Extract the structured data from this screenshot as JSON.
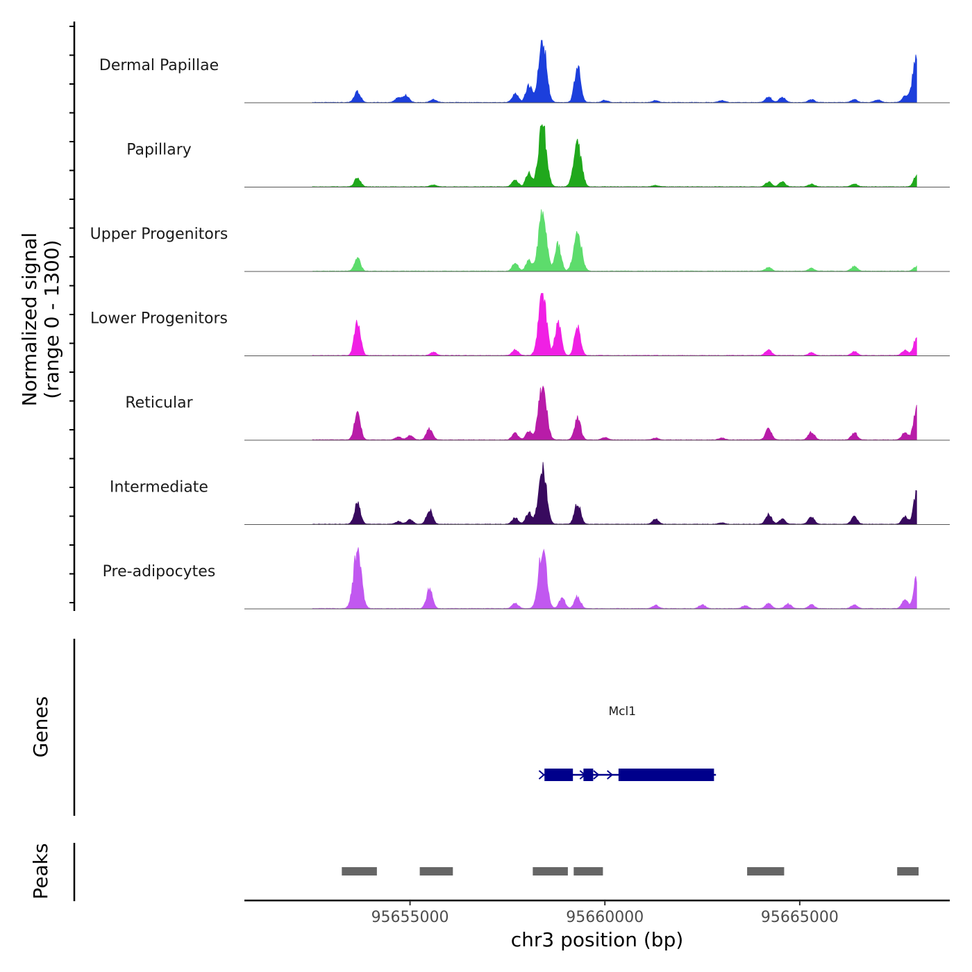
{
  "chart_data": {
    "type": "area",
    "title": "",
    "ylabel": "Normalized signal",
    "ylabel_range": "(range 0 - 1300)",
    "y_range": [
      0,
      1300
    ],
    "xlabel": "chr3 position (bp)",
    "x_range": [
      95650750,
      95668850
    ],
    "x_ticks": [
      {
        "value": 95655000,
        "label": "95655000"
      },
      {
        "value": 95660000,
        "label": "95660000"
      },
      {
        "value": 95665000,
        "label": "95665000"
      }
    ],
    "signal_end": 95668000,
    "series": [
      {
        "name": "Dermal Papillae",
        "color": "#1c3fdc",
        "peaks": [
          {
            "x": 95652200,
            "y": 60
          },
          {
            "x": 95653650,
            "y": 230
          },
          {
            "x": 95654700,
            "y": 110
          },
          {
            "x": 95654900,
            "y": 140
          },
          {
            "x": 95655600,
            "y": 60
          },
          {
            "x": 95657700,
            "y": 190
          },
          {
            "x": 95658050,
            "y": 370
          },
          {
            "x": 95658400,
            "y": 1300
          },
          {
            "x": 95659300,
            "y": 760
          },
          {
            "x": 95660000,
            "y": 45
          },
          {
            "x": 95661300,
            "y": 40
          },
          {
            "x": 95663000,
            "y": 40
          },
          {
            "x": 95664200,
            "y": 120
          },
          {
            "x": 95664550,
            "y": 110
          },
          {
            "x": 95665300,
            "y": 60
          },
          {
            "x": 95666400,
            "y": 60
          },
          {
            "x": 95667000,
            "y": 55
          },
          {
            "x": 95667700,
            "y": 130
          },
          {
            "x": 95668000,
            "y": 950
          }
        ]
      },
      {
        "name": "Papillary",
        "color": "#20a81c",
        "peaks": [
          {
            "x": 95652200,
            "y": 50
          },
          {
            "x": 95653650,
            "y": 190
          },
          {
            "x": 95655600,
            "y": 40
          },
          {
            "x": 95657700,
            "y": 150
          },
          {
            "x": 95658050,
            "y": 280
          },
          {
            "x": 95658400,
            "y": 1300
          },
          {
            "x": 95659300,
            "y": 880
          },
          {
            "x": 95661300,
            "y": 30
          },
          {
            "x": 95664200,
            "y": 100
          },
          {
            "x": 95664550,
            "y": 110
          },
          {
            "x": 95665300,
            "y": 60
          },
          {
            "x": 95666400,
            "y": 60
          },
          {
            "x": 95668000,
            "y": 230
          }
        ]
      },
      {
        "name": "Upper Progenitors",
        "color": "#5ddc6c",
        "peaks": [
          {
            "x": 95652200,
            "y": 50
          },
          {
            "x": 95653650,
            "y": 270
          },
          {
            "x": 95657700,
            "y": 160
          },
          {
            "x": 95658050,
            "y": 220
          },
          {
            "x": 95658400,
            "y": 1300
          },
          {
            "x": 95658800,
            "y": 550
          },
          {
            "x": 95659300,
            "y": 820
          },
          {
            "x": 95664200,
            "y": 80
          },
          {
            "x": 95665300,
            "y": 60
          },
          {
            "x": 95666400,
            "y": 100
          },
          {
            "x": 95668000,
            "y": 100
          }
        ]
      },
      {
        "name": "Lower Progenitors",
        "color": "#f020e4",
        "peaks": [
          {
            "x": 95652200,
            "y": 30
          },
          {
            "x": 95653650,
            "y": 700
          },
          {
            "x": 95655600,
            "y": 70
          },
          {
            "x": 95657700,
            "y": 120
          },
          {
            "x": 95658400,
            "y": 1300
          },
          {
            "x": 95658800,
            "y": 700
          },
          {
            "x": 95659300,
            "y": 620
          },
          {
            "x": 95664200,
            "y": 120
          },
          {
            "x": 95665300,
            "y": 60
          },
          {
            "x": 95666400,
            "y": 80
          },
          {
            "x": 95667700,
            "y": 110
          },
          {
            "x": 95668000,
            "y": 380
          }
        ]
      },
      {
        "name": "Reticular",
        "color": "#b81ca8",
        "peaks": [
          {
            "x": 95652200,
            "y": 40
          },
          {
            "x": 95653650,
            "y": 560
          },
          {
            "x": 95654700,
            "y": 60
          },
          {
            "x": 95655000,
            "y": 90
          },
          {
            "x": 95655500,
            "y": 240
          },
          {
            "x": 95657700,
            "y": 140
          },
          {
            "x": 95658050,
            "y": 180
          },
          {
            "x": 95658400,
            "y": 1200
          },
          {
            "x": 95659300,
            "y": 470
          },
          {
            "x": 95660000,
            "y": 50
          },
          {
            "x": 95661300,
            "y": 40
          },
          {
            "x": 95663000,
            "y": 40
          },
          {
            "x": 95664200,
            "y": 220
          },
          {
            "x": 95665300,
            "y": 170
          },
          {
            "x": 95666400,
            "y": 150
          },
          {
            "x": 95667700,
            "y": 160
          },
          {
            "x": 95668000,
            "y": 700
          }
        ]
      },
      {
        "name": "Intermediate",
        "color": "#380a5e",
        "peaks": [
          {
            "x": 95652200,
            "y": 40
          },
          {
            "x": 95653650,
            "y": 440
          },
          {
            "x": 95654700,
            "y": 60
          },
          {
            "x": 95655000,
            "y": 100
          },
          {
            "x": 95655500,
            "y": 300
          },
          {
            "x": 95657700,
            "y": 140
          },
          {
            "x": 95658050,
            "y": 240
          },
          {
            "x": 95658400,
            "y": 1200
          },
          {
            "x": 95659300,
            "y": 440
          },
          {
            "x": 95661300,
            "y": 110
          },
          {
            "x": 95663000,
            "y": 30
          },
          {
            "x": 95664200,
            "y": 210
          },
          {
            "x": 95664550,
            "y": 110
          },
          {
            "x": 95665300,
            "y": 150
          },
          {
            "x": 95666400,
            "y": 150
          },
          {
            "x": 95667700,
            "y": 160
          },
          {
            "x": 95668000,
            "y": 650
          }
        ]
      },
      {
        "name": "Pre-adipocytes",
        "color": "#c158f0",
        "peaks": [
          {
            "x": 95653650,
            "y": 1200
          },
          {
            "x": 95655500,
            "y": 400
          },
          {
            "x": 95657700,
            "y": 120
          },
          {
            "x": 95658400,
            "y": 1300
          },
          {
            "x": 95658900,
            "y": 230
          },
          {
            "x": 95659300,
            "y": 250
          },
          {
            "x": 95661300,
            "y": 70
          },
          {
            "x": 95662500,
            "y": 80
          },
          {
            "x": 95663600,
            "y": 60
          },
          {
            "x": 95664200,
            "y": 110
          },
          {
            "x": 95664700,
            "y": 100
          },
          {
            "x": 95665300,
            "y": 80
          },
          {
            "x": 95666400,
            "y": 80
          },
          {
            "x": 95667700,
            "y": 180
          },
          {
            "x": 95668000,
            "y": 650
          }
        ]
      }
    ],
    "genes": {
      "label": "Genes",
      "color": "#00008b",
      "items": [
        {
          "name": "Mcl1",
          "start": 95658400,
          "end": 95662850,
          "strand": "+",
          "exons": [
            [
              95658450,
              95659180
            ],
            [
              95659450,
              95659700
            ],
            [
              95660350,
              95662800
            ]
          ]
        }
      ]
    },
    "peaks": {
      "label": "Peaks",
      "color": "#666666",
      "ranges": [
        [
          95653250,
          95654150
        ],
        [
          95655250,
          95656100
        ],
        [
          95658150,
          95659050
        ],
        [
          95659200,
          95659950
        ],
        [
          95663650,
          95664600
        ],
        [
          95667500,
          95668050
        ]
      ]
    }
  }
}
